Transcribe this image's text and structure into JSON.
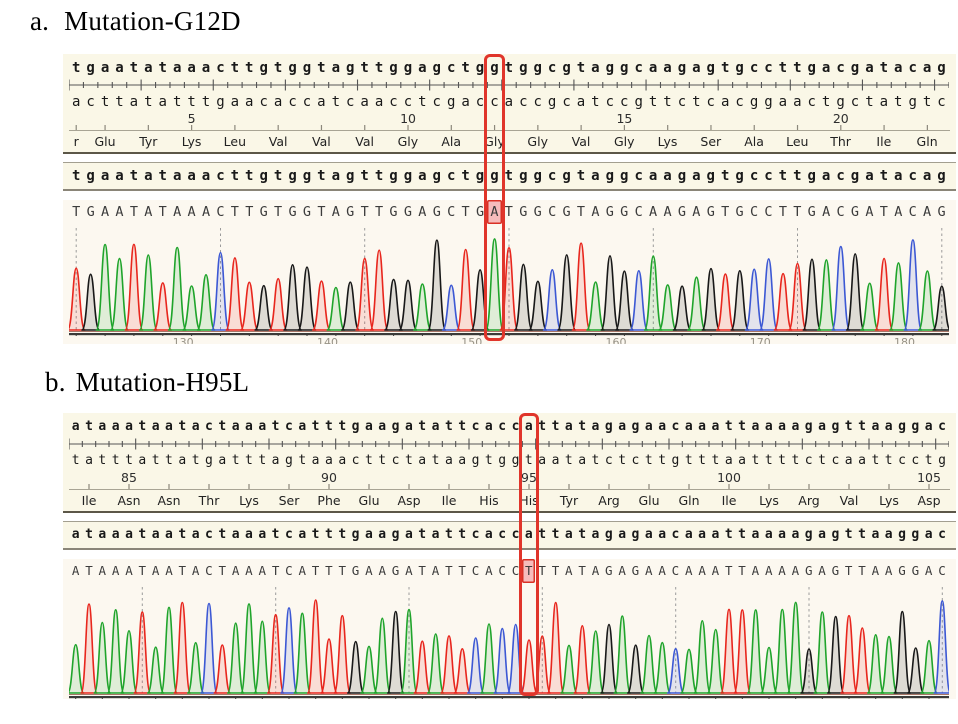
{
  "base_colors": {
    "A": "#1FA42B",
    "C": "#3C58D4",
    "G": "#181818",
    "T": "#E8261D"
  },
  "accent": {
    "box_red": "#E0352B",
    "highlight_pink": "#F6BCBC",
    "panel_cream": "#FAF7E7",
    "trace_background": "#FCF8F0"
  },
  "panels": [
    {
      "id": "a",
      "label": "a.",
      "title": "Mutation-G12D",
      "ref_seq": "tgaatataaacttgtggtagttggagctggtggcgtaggcaagagtgccttgacgatacag",
      "complement_seq": "acttatatttgaacaccatcaacctcgaccaccgcatccgttctcacggaactgctatgtc",
      "repeat_seq": "tgaatataaacttgtggtagttggagctggtggcgtaggcaagagtgccttgacgatacag",
      "trace_seq": "TGAATATAAACTTGTGGTAGTTGGAGCTGATGGCGTAGGCAAGAGTGCCTTGACGATACAG",
      "mutation_index": 29,
      "mutation_peak_height": 0.93,
      "seed": 3,
      "chrom_height": 112,
      "dash_offset": 0.5,
      "amino_acids": [
        {
          "label": "r",
          "span": 1
        },
        {
          "label": "Glu",
          "span": 3
        },
        {
          "label": "Tyr",
          "span": 3
        },
        {
          "label": "Lys",
          "span": 3
        },
        {
          "label": "Leu",
          "span": 3
        },
        {
          "label": "Val",
          "span": 3
        },
        {
          "label": "Val",
          "span": 3
        },
        {
          "label": "Val",
          "span": 3
        },
        {
          "label": "Gly",
          "span": 3
        },
        {
          "label": "Ala",
          "span": 3
        },
        {
          "label": "Gly",
          "span": 3
        },
        {
          "label": "Gly",
          "span": 3
        },
        {
          "label": "Val",
          "span": 3
        },
        {
          "label": "Gly",
          "span": 3
        },
        {
          "label": "Lys",
          "span": 3
        },
        {
          "label": "Ser",
          "span": 3
        },
        {
          "label": "Ala",
          "span": 3
        },
        {
          "label": "Leu",
          "span": 3
        },
        {
          "label": "Thr",
          "span": 3
        },
        {
          "label": "Ile",
          "span": 3
        },
        {
          "label": "Gln",
          "span": 3
        }
      ],
      "aa_numbers": [
        {
          "label": "5",
          "aa_index": 3
        },
        {
          "label": "10",
          "aa_index": 8
        },
        {
          "label": "15",
          "aa_index": 13
        },
        {
          "label": "20",
          "aa_index": 18
        }
      ],
      "bottom_numbers": [
        "130",
        "140",
        "150",
        "160",
        "170",
        "180"
      ]
    },
    {
      "id": "b",
      "label": "b.",
      "title": "Mutation-H95L",
      "ref_seq": "ataaataatactaaatcatttgaagatattcaccattatagagaacaaattaaaagagttaaggac",
      "complement_seq": "tatttattatgatttagtaaacttctataagtggtaatatctcttgtttaattttctcaattcctg",
      "repeat_seq": "ataaataatactaaatcatttgaagatattcaccattatagagaacaaattaaaagagttaaggac",
      "trace_seq": "ATAAATAATACTAAATCATTTGAAGATATTCACCTTTATAGAGAACAAATTAAAAGAGTTAAGGAC",
      "mutation_index": 34,
      "mutation_peak_height": 0.52,
      "seed": 7,
      "chrom_height": 116,
      "dash_offset": 5.5,
      "amino_acids": [
        {
          "label": "Ile",
          "span": 3
        },
        {
          "label": "Asn",
          "span": 3
        },
        {
          "label": "Asn",
          "span": 3
        },
        {
          "label": "Thr",
          "span": 3
        },
        {
          "label": "Lys",
          "span": 3
        },
        {
          "label": "Ser",
          "span": 3
        },
        {
          "label": "Phe",
          "span": 3
        },
        {
          "label": "Glu",
          "span": 3
        },
        {
          "label": "Asp",
          "span": 3
        },
        {
          "label": "Ile",
          "span": 3
        },
        {
          "label": "His",
          "span": 3
        },
        {
          "label": "His",
          "span": 3
        },
        {
          "label": "Tyr",
          "span": 3
        },
        {
          "label": "Arg",
          "span": 3
        },
        {
          "label": "Glu",
          "span": 3
        },
        {
          "label": "Gln",
          "span": 3
        },
        {
          "label": "Ile",
          "span": 3
        },
        {
          "label": "Lys",
          "span": 3
        },
        {
          "label": "Arg",
          "span": 3
        },
        {
          "label": "Val",
          "span": 3
        },
        {
          "label": "Lys",
          "span": 3
        },
        {
          "label": "Asp",
          "span": 3
        }
      ],
      "aa_numbers": [
        {
          "label": "85",
          "aa_index": 1
        },
        {
          "label": "90",
          "aa_index": 6
        },
        {
          "label": "95",
          "aa_index": 11
        },
        {
          "label": "100",
          "aa_index": 16
        },
        {
          "label": "105",
          "aa_index": 21
        }
      ],
      "bottom_numbers": []
    }
  ]
}
